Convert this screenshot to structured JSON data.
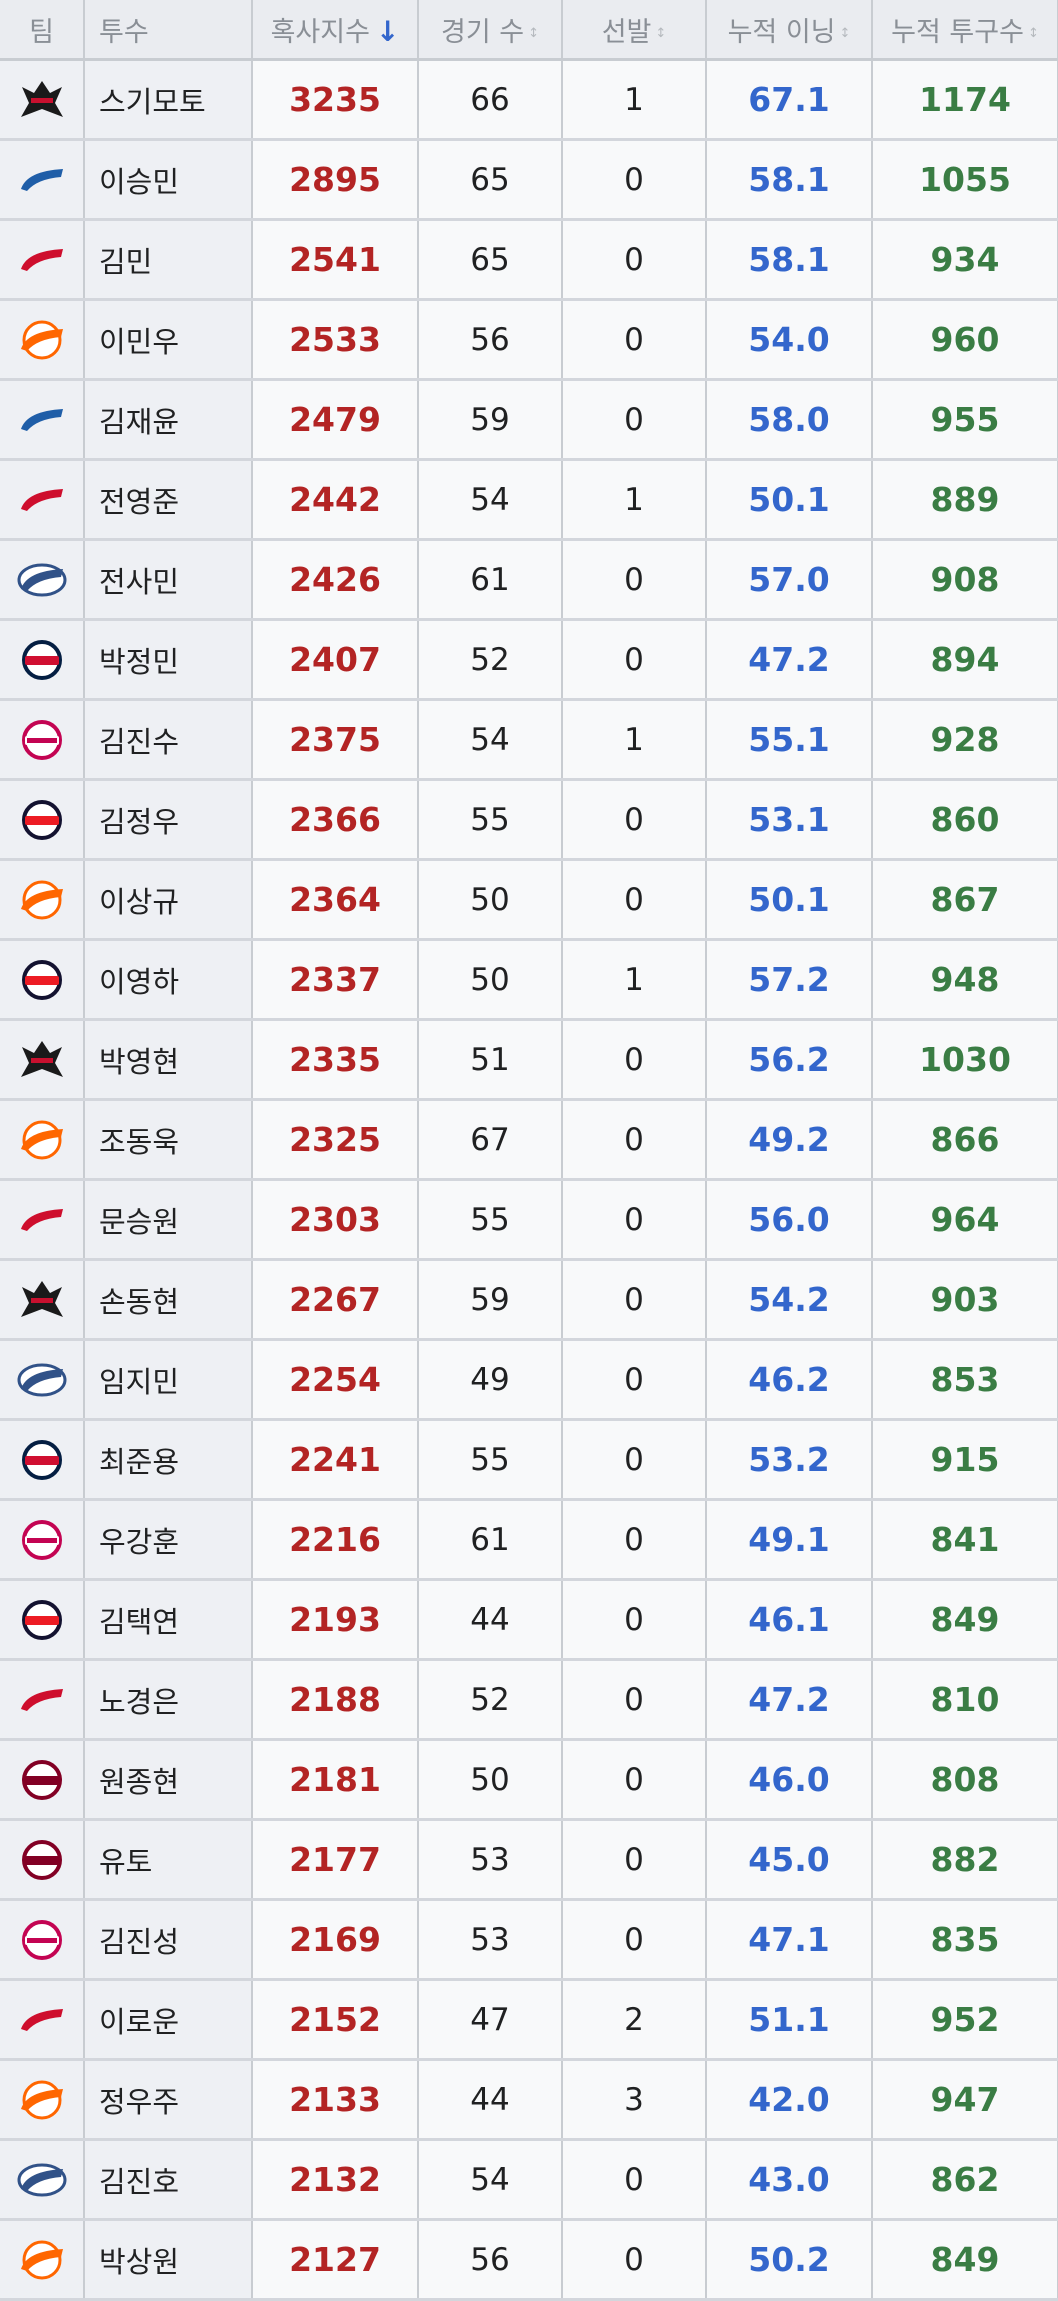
{
  "headers": {
    "team": "팀",
    "pitcher": "투수",
    "score": "혹사지수",
    "games": "경기 수",
    "starts": "선발",
    "innings": "누적 이닝",
    "pitches": "누적 투구수"
  },
  "sort": {
    "column": "score",
    "direction": "descending"
  },
  "teams": {
    "ktwiz": {
      "label": "KT WIZ",
      "color": "#1a1a1a",
      "accent": "#c8102e",
      "icon": "ktwiz-logo-icon"
    },
    "lions": {
      "label": "Lions",
      "color": "#1f5ea8",
      "accent": "#ffffff",
      "icon": "lions-logo-icon"
    },
    "landers": {
      "label": "Landers",
      "color": "#ce0e2d",
      "accent": "#ffffff",
      "icon": "landers-logo-icon"
    },
    "eagles": {
      "label": "Eagles",
      "color": "#ff6600",
      "accent": "#ffffff",
      "icon": "eagles-logo-icon"
    },
    "dinos": {
      "label": "Dinos",
      "color": "#315288",
      "accent": "#b5a06c",
      "icon": "dinos-logo-icon"
    },
    "giants": {
      "label": "Giants",
      "color": "#041e42",
      "accent": "#d00f31",
      "icon": "giants-logo-icon"
    },
    "twins": {
      "label": "TWINS",
      "color": "#c30452",
      "accent": "#ffffff",
      "icon": "twins-logo-icon"
    },
    "bears": {
      "label": "Bears",
      "color": "#131230",
      "accent": "#ed1c24",
      "icon": "bears-logo-icon"
    },
    "heroes": {
      "label": "Heroes",
      "color": "#820024",
      "accent": "#ffffff",
      "icon": "heroes-logo-icon"
    }
  },
  "rows": [
    {
      "team": "ktwiz",
      "name": "스기모토",
      "score": "3235",
      "games": "66",
      "starts": "1",
      "innings": "67.1",
      "pitches": "1174"
    },
    {
      "team": "lions",
      "name": "이승민",
      "score": "2895",
      "games": "65",
      "starts": "0",
      "innings": "58.1",
      "pitches": "1055"
    },
    {
      "team": "landers",
      "name": "김민",
      "score": "2541",
      "games": "65",
      "starts": "0",
      "innings": "58.1",
      "pitches": "934"
    },
    {
      "team": "eagles",
      "name": "이민우",
      "score": "2533",
      "games": "56",
      "starts": "0",
      "innings": "54.0",
      "pitches": "960"
    },
    {
      "team": "lions",
      "name": "김재윤",
      "score": "2479",
      "games": "59",
      "starts": "0",
      "innings": "58.0",
      "pitches": "955"
    },
    {
      "team": "landers",
      "name": "전영준",
      "score": "2442",
      "games": "54",
      "starts": "1",
      "innings": "50.1",
      "pitches": "889"
    },
    {
      "team": "dinos",
      "name": "전사민",
      "score": "2426",
      "games": "61",
      "starts": "0",
      "innings": "57.0",
      "pitches": "908"
    },
    {
      "team": "giants",
      "name": "박정민",
      "score": "2407",
      "games": "52",
      "starts": "0",
      "innings": "47.2",
      "pitches": "894"
    },
    {
      "team": "twins",
      "name": "김진수",
      "score": "2375",
      "games": "54",
      "starts": "1",
      "innings": "55.1",
      "pitches": "928"
    },
    {
      "team": "bears",
      "name": "김정우",
      "score": "2366",
      "games": "55",
      "starts": "0",
      "innings": "53.1",
      "pitches": "860"
    },
    {
      "team": "eagles",
      "name": "이상규",
      "score": "2364",
      "games": "50",
      "starts": "0",
      "innings": "50.1",
      "pitches": "867"
    },
    {
      "team": "bears",
      "name": "이영하",
      "score": "2337",
      "games": "50",
      "starts": "1",
      "innings": "57.2",
      "pitches": "948"
    },
    {
      "team": "ktwiz",
      "name": "박영현",
      "score": "2335",
      "games": "51",
      "starts": "0",
      "innings": "56.2",
      "pitches": "1030"
    },
    {
      "team": "eagles",
      "name": "조동욱",
      "score": "2325",
      "games": "67",
      "starts": "0",
      "innings": "49.2",
      "pitches": "866"
    },
    {
      "team": "landers",
      "name": "문승원",
      "score": "2303",
      "games": "55",
      "starts": "0",
      "innings": "56.0",
      "pitches": "964"
    },
    {
      "team": "ktwiz",
      "name": "손동현",
      "score": "2267",
      "games": "59",
      "starts": "0",
      "innings": "54.2",
      "pitches": "903"
    },
    {
      "team": "dinos",
      "name": "임지민",
      "score": "2254",
      "games": "49",
      "starts": "0",
      "innings": "46.2",
      "pitches": "853"
    },
    {
      "team": "giants",
      "name": "최준용",
      "score": "2241",
      "games": "55",
      "starts": "0",
      "innings": "53.2",
      "pitches": "915"
    },
    {
      "team": "twins",
      "name": "우강훈",
      "score": "2216",
      "games": "61",
      "starts": "0",
      "innings": "49.1",
      "pitches": "841"
    },
    {
      "team": "bears",
      "name": "김택연",
      "score": "2193",
      "games": "44",
      "starts": "0",
      "innings": "46.1",
      "pitches": "849"
    },
    {
      "team": "landers",
      "name": "노경은",
      "score": "2188",
      "games": "52",
      "starts": "0",
      "innings": "47.2",
      "pitches": "810"
    },
    {
      "team": "heroes",
      "name": "원종현",
      "score": "2181",
      "games": "50",
      "starts": "0",
      "innings": "46.0",
      "pitches": "808"
    },
    {
      "team": "heroes",
      "name": "유토",
      "score": "2177",
      "games": "53",
      "starts": "0",
      "innings": "45.0",
      "pitches": "882"
    },
    {
      "team": "twins",
      "name": "김진성",
      "score": "2169",
      "games": "53",
      "starts": "0",
      "innings": "47.1",
      "pitches": "835"
    },
    {
      "team": "landers",
      "name": "이로운",
      "score": "2152",
      "games": "47",
      "starts": "2",
      "innings": "51.1",
      "pitches": "952"
    },
    {
      "team": "eagles",
      "name": "정우주",
      "score": "2133",
      "games": "44",
      "starts": "3",
      "innings": "42.0",
      "pitches": "947"
    },
    {
      "team": "dinos",
      "name": "김진호",
      "score": "2132",
      "games": "54",
      "starts": "0",
      "innings": "43.0",
      "pitches": "862"
    },
    {
      "team": "eagles",
      "name": "박상원",
      "score": "2127",
      "games": "56",
      "starts": "0",
      "innings": "50.2",
      "pitches": "849"
    }
  ]
}
